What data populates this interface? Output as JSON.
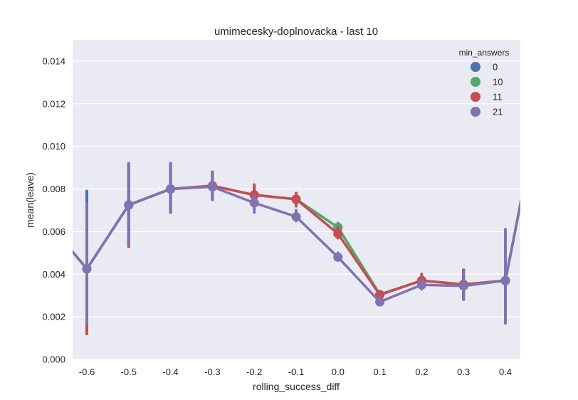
{
  "chart_data": {
    "type": "line",
    "title": "umimecesky-doplnovacka - last 10",
    "xlabel": "rolling_success_diff",
    "ylabel": "mean(leave)",
    "categories": [
      "-0.6",
      "-0.5",
      "-0.4",
      "-0.3",
      "-0.2",
      "-0.1",
      "0.0",
      "0.1",
      "0.2",
      "0.3",
      "0.4"
    ],
    "ylim": [
      0,
      0.015
    ],
    "yticks": [
      0.0,
      0.002,
      0.004,
      0.006,
      0.008,
      0.01,
      0.012,
      0.014
    ],
    "ytick_labels": [
      "0.000",
      "0.002",
      "0.004",
      "0.006",
      "0.008",
      "0.010",
      "0.012",
      "0.014"
    ],
    "grid": true,
    "legend": {
      "title": "min_answers",
      "placement": "top-right"
    },
    "series": [
      {
        "name": "0",
        "color": "#4c72b0",
        "values": [
          0.00425,
          0.00725,
          0.008,
          0.00815,
          0.00772,
          0.00752,
          0.0062,
          0.00305,
          0.0037,
          0.00352,
          0.0037
        ],
        "err_low": [
          0.002,
          0.0054,
          0.0069,
          0.0075,
          0.0072,
          0.0072,
          0.0059,
          0.0028,
          0.0035,
          0.0029,
          0.0018
        ],
        "err_high": [
          0.0079,
          0.0092,
          0.0092,
          0.0088,
          0.0081,
          0.0078,
          0.0064,
          0.0032,
          0.004,
          0.0042,
          0.0061
        ]
      },
      {
        "name": "10",
        "color": "#55a868",
        "values": [
          0.00425,
          0.00725,
          0.008,
          0.00815,
          0.00772,
          0.00752,
          0.0062,
          0.00305,
          0.0037,
          0.00352,
          0.0037
        ],
        "err_low": [
          0.0015,
          0.0053,
          0.0069,
          0.0075,
          0.0072,
          0.0072,
          0.0059,
          0.0028,
          0.0035,
          0.0029,
          0.0018
        ],
        "err_high": [
          0.0073,
          0.0092,
          0.0092,
          0.0088,
          0.0081,
          0.0078,
          0.0064,
          0.0032,
          0.004,
          0.0042,
          0.0061
        ]
      },
      {
        "name": "11",
        "color": "#c44e52",
        "values": [
          0.00425,
          0.00725,
          0.008,
          0.00815,
          0.00772,
          0.00752,
          0.0059,
          0.00303,
          0.0037,
          0.00352,
          0.0037
        ],
        "err_low": [
          0.0012,
          0.0053,
          0.0069,
          0.0075,
          0.0072,
          0.0072,
          0.0057,
          0.0028,
          0.0035,
          0.0029,
          0.0018
        ],
        "err_high": [
          0.0073,
          0.0092,
          0.0092,
          0.0088,
          0.0082,
          0.0078,
          0.0062,
          0.0032,
          0.004,
          0.0042,
          0.0061
        ]
      },
      {
        "name": "21",
        "color": "#8172b2",
        "values": [
          0.00425,
          0.00725,
          0.008,
          0.0081,
          0.00735,
          0.0067,
          0.0048,
          0.0027,
          0.0035,
          0.00345,
          0.0037
        ],
        "err_low": [
          0.0017,
          0.0054,
          0.0069,
          0.0075,
          0.0069,
          0.0065,
          0.0047,
          0.0026,
          0.0033,
          0.0028,
          0.0017
        ],
        "err_high": [
          0.0073,
          0.0092,
          0.0092,
          0.0088,
          0.0077,
          0.007,
          0.005,
          0.0029,
          0.0037,
          0.0041,
          0.0061
        ]
      }
    ]
  }
}
